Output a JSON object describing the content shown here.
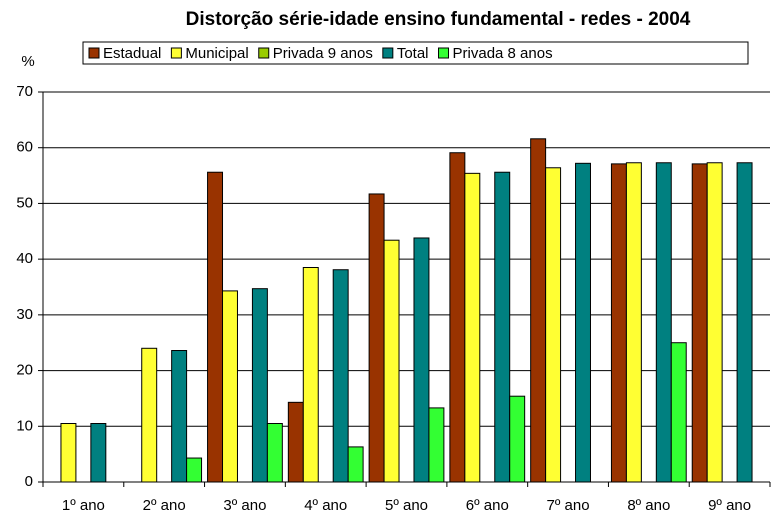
{
  "chart_data": {
    "type": "bar",
    "title": "Distorção série-idade ensino fundamental - redes - 2004",
    "ylabel": "%",
    "categories": [
      "1º ano",
      "2º ano",
      "3º ano",
      "4º ano",
      "5º ano",
      "6º ano",
      "7º ano",
      "8º ano",
      "9º ano"
    ],
    "series": [
      {
        "name": "Estadual",
        "color": "#993300",
        "values": [
          null,
          null,
          55.6,
          14.3,
          51.7,
          59.1,
          61.6,
          57.1,
          57.1
        ]
      },
      {
        "name": "Municipal",
        "color": "#ffff33",
        "values": [
          10.5,
          24,
          34.3,
          38.5,
          43.4,
          55.4,
          56.4,
          57.3,
          57.3
        ]
      },
      {
        "name": "Privada 9 anos",
        "color": "#99cc00",
        "values": [
          null,
          null,
          null,
          null,
          null,
          null,
          null,
          null,
          null
        ]
      },
      {
        "name": "Total",
        "color": "#008080",
        "values": [
          10.5,
          23.6,
          34.7,
          38.1,
          43.8,
          55.6,
          57.2,
          57.3,
          57.3
        ]
      },
      {
        "name": "Privada 8 anos",
        "color": "#33ff33",
        "values": [
          null,
          4.3,
          10.5,
          6.3,
          13.3,
          15.4,
          null,
          25,
          null
        ]
      }
    ],
    "ylim": [
      0,
      70
    ],
    "yticks": [
      0,
      10,
      20,
      30,
      40,
      50,
      60,
      70
    ],
    "grid": true
  }
}
